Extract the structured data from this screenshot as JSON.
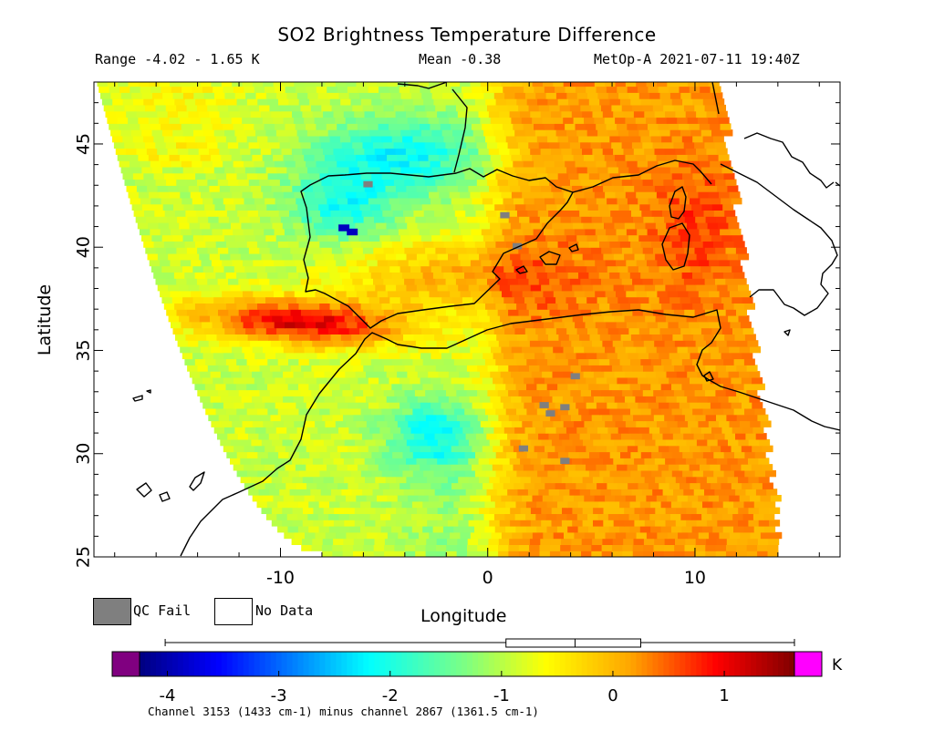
{
  "header": {
    "title": "SO2 Brightness Temperature Difference",
    "range": "Range -4.02 - 1.65 K",
    "mean": "Mean -0.38",
    "satellite_time": "MetOp-A 2021-07-11 19:40Z"
  },
  "axes": {
    "xlabel": "Longitude",
    "ylabel": "Latitude",
    "x_ticks": [
      "-10",
      "0",
      "10"
    ],
    "y_ticks": [
      "25",
      "30",
      "35",
      "40",
      "45"
    ],
    "xlim": [
      -19,
      17
    ],
    "ylim": [
      25,
      48
    ]
  },
  "legend": {
    "qc_fail": "QC Fail",
    "no_data": "No Data",
    "qc_fail_color": "#7f7f7f",
    "no_data_color": "#ffffff"
  },
  "colorbar": {
    "unit": "K",
    "ticks": [
      "-4",
      "-3",
      "-2",
      "-1",
      "0",
      "1"
    ],
    "min": -4.25,
    "max": 1.63,
    "under_color": "#800080",
    "over_color": "#ff00ff",
    "boxplot": {
      "min": -4.02,
      "q1": -0.96,
      "median": -0.34,
      "q3": 0.25,
      "max": 1.65
    }
  },
  "footnote": "Channel 3153 (1433 cm-1) minus channel 2867 (1361.5 cm-1)",
  "chart_data": {
    "type": "heatmap",
    "title": "SO2 Brightness Temperature Difference",
    "xlabel": "Longitude",
    "ylabel": "Latitude",
    "units": "K",
    "range": [
      -4.02,
      1.65
    ],
    "mean": -0.38,
    "xlim": [
      -19,
      17
    ],
    "ylim": [
      25,
      48
    ],
    "swath": "Data fills a diagonal swath roughly from lon -15..-8 (west edge) to lon 11..14 (east edge); outside the swath is No Data.",
    "qc_fail_points": [
      [
        -6,
        42.9
      ],
      [
        0.6,
        41.4
      ],
      [
        1.2,
        39.9
      ],
      [
        2.8,
        31.8
      ],
      [
        2.5,
        32.2
      ],
      [
        3.5,
        32.1
      ],
      [
        3.5,
        29.5
      ],
      [
        1.5,
        30.1
      ],
      [
        4,
        33.6
      ]
    ],
    "notable_values": [
      {
        "region": "Strait of Gibraltar band (lat 35-37, lon -13..-5)",
        "value": 1.3
      },
      {
        "region": "Western Mediterranean / North Africa east of 0 lon",
        "value": 0.6
      },
      {
        "region": "Tunisia / Sardinia area",
        "value": 1.1
      },
      {
        "region": "Bay of Biscay",
        "value": -1.5
      },
      {
        "region": "Northwest Iberia",
        "value": -2.3
      },
      {
        "region": "Morocco interior (lon -4..-1, lat 29..32)",
        "value": -1.6
      },
      {
        "region": "Northwest Iberia minimum (lon -7, lat 40.8)",
        "value": -4.0
      }
    ]
  }
}
